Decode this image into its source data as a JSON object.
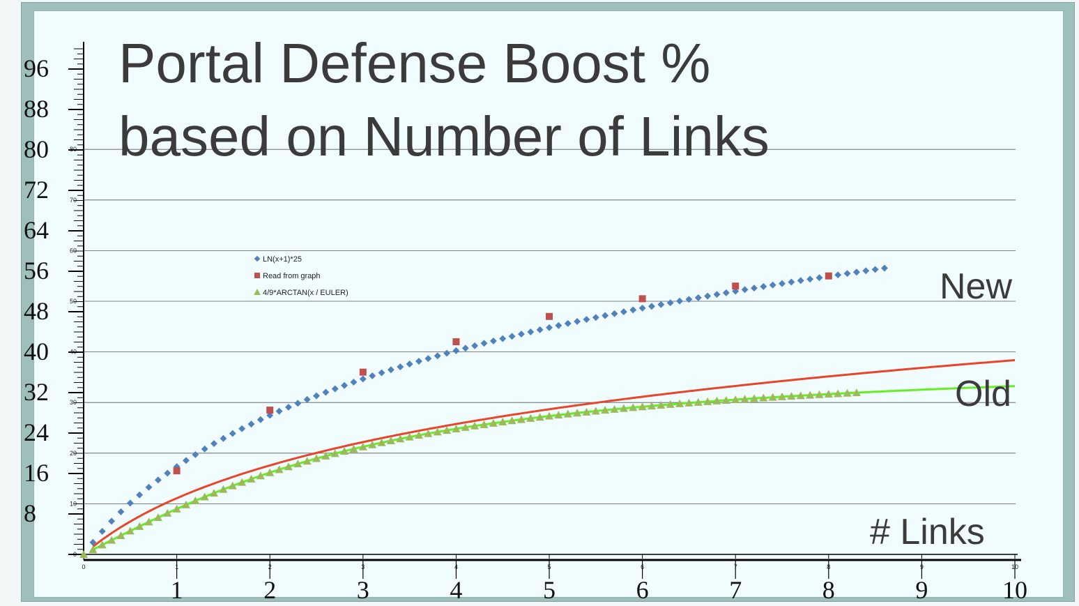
{
  "chart_data": {
    "type": "line",
    "title_line1": "Portal Defense Boost %",
    "title_line2": "based on Number of Links",
    "annotations": {
      "new": "New",
      "old": "Old",
      "x_axis_label": "# Links"
    },
    "xlim": [
      0,
      10
    ],
    "ylim_inner": [
      0,
      80
    ],
    "ylim_ruler": [
      0,
      100
    ],
    "x_ticks": [
      "0",
      "1",
      "2",
      "3",
      "4",
      "5",
      "6",
      "7",
      "8",
      "9",
      "10"
    ],
    "x_ticks_big": [
      "1",
      "2",
      "3",
      "4",
      "5",
      "6",
      "7",
      "8",
      "9",
      "10"
    ],
    "y_ticks_inner": [
      "0",
      "10",
      "20",
      "30",
      "40",
      "50",
      "60",
      "70",
      "80"
    ],
    "y_ticks_ruler": [
      "8",
      "16",
      "24",
      "32",
      "40",
      "48",
      "56",
      "64",
      "72",
      "80",
      "88",
      "96"
    ],
    "y_ruler_values": [
      8,
      16,
      24,
      32,
      40,
      48,
      56,
      64,
      72,
      80,
      88,
      96
    ],
    "grid": true,
    "legend": [
      {
        "name": "LN(x+1)*25",
        "marker": "diamond",
        "color": "#4f81bd"
      },
      {
        "name": "Read from graph",
        "marker": "square",
        "color": "#c0504d"
      },
      {
        "name": "4/9*ARCTAN(x / EULER)",
        "marker": "triangle",
        "color": "#9bbb59"
      }
    ],
    "series": [
      {
        "name": "LN(x+1)*25",
        "marker": "diamond",
        "color": "#4f81bd",
        "x_start": 0.1,
        "x_end": 8.6,
        "x_step": 0.1
      },
      {
        "name": "Read from graph",
        "marker": "square",
        "color": "#c0504d",
        "x": [
          1,
          2,
          3,
          4,
          5,
          6,
          7,
          8
        ],
        "y": [
          16.5,
          28.5,
          36,
          42,
          47,
          50.5,
          53,
          55
        ]
      },
      {
        "name": "4/9*ARCTAN(x / EULER)",
        "marker": "triangle",
        "color": "#9bbb59",
        "x_start": 0,
        "x_end": 8.3,
        "x_step": 0.1
      },
      {
        "name": "New",
        "type": "line",
        "color": "#66ee22",
        "x_start": 0.1,
        "x_end": 10
      },
      {
        "name": "Old",
        "type": "line",
        "color": "#e8452a",
        "x_start": 0.1,
        "x_end": 10
      }
    ],
    "colors": {
      "grid": "#555555",
      "axis": "#000000",
      "background": "#f0fcfe",
      "frame": "#9fbfbd"
    }
  }
}
